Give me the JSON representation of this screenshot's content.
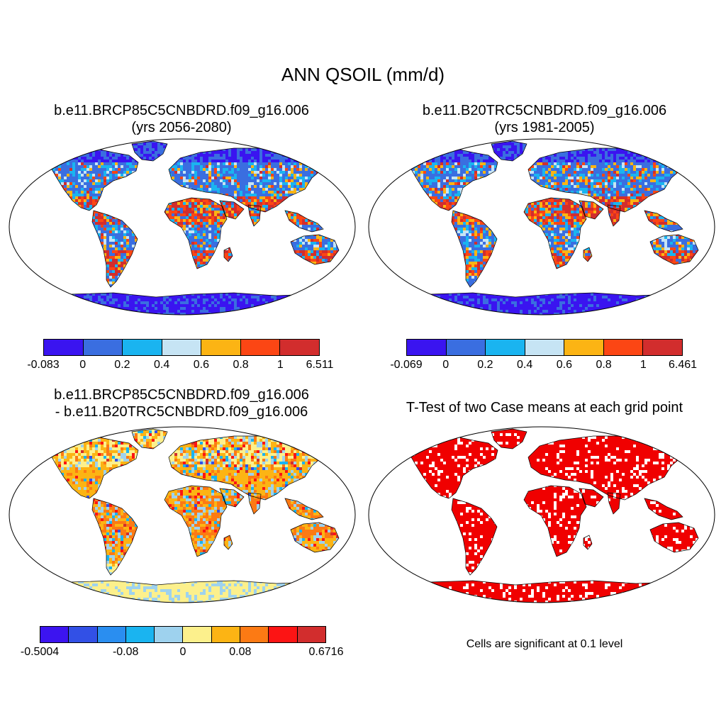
{
  "main_title": "ANN QSOIL (mm/d)",
  "panels": [
    {
      "id": "future",
      "title_line1": "b.e11.BRCP85C5CNBDRD.f09_g16.006",
      "title_line2": "(yrs 2056-2080)",
      "colorbar": {
        "colors": [
          "#3a14f0",
          "#3a6ee0",
          "#1ab4f0",
          "#c6e4f4",
          "#fcb414",
          "#fc4614",
          "#d22d2d"
        ],
        "labels": [
          "-0.083",
          "0",
          "0.2",
          "0.4",
          "0.6",
          "0.8",
          "1",
          "6.511"
        ]
      }
    },
    {
      "id": "historical",
      "title_line1": "b.e11.B20TRC5CNBDRD.f09_g16.006",
      "title_line2": "(yrs 1981-2005)",
      "colorbar": {
        "colors": [
          "#3a14f0",
          "#3a6ee0",
          "#1ab4f0",
          "#c6e4f4",
          "#fcb414",
          "#fc4614",
          "#d22d2d"
        ],
        "labels": [
          "-0.069",
          "0",
          "0.2",
          "0.4",
          "0.6",
          "0.8",
          "1",
          "6.461"
        ]
      }
    },
    {
      "id": "difference",
      "title_line1": "b.e11.BRCP85C5CNBDRD.f09_g16.006",
      "title_line2": "- b.e11.B20TRC5CNBDRD.f09_g16.006",
      "colorbar": {
        "colors": [
          "#3c14f0",
          "#3250e6",
          "#2a8ef0",
          "#1ab4f0",
          "#9ed2ee",
          "#fcf08c",
          "#fcb414",
          "#fc7a14",
          "#fc1414",
          "#d22d2d"
        ],
        "labels": [
          "-0.5004",
          "-0.08",
          "0",
          "0.08",
          "0.6716"
        ]
      }
    },
    {
      "id": "ttest",
      "title_line1": "T-Test of two Case means at each grid point",
      "note": "Cells are significant at 0.1 level",
      "significant_color": "#f00000"
    }
  ]
}
